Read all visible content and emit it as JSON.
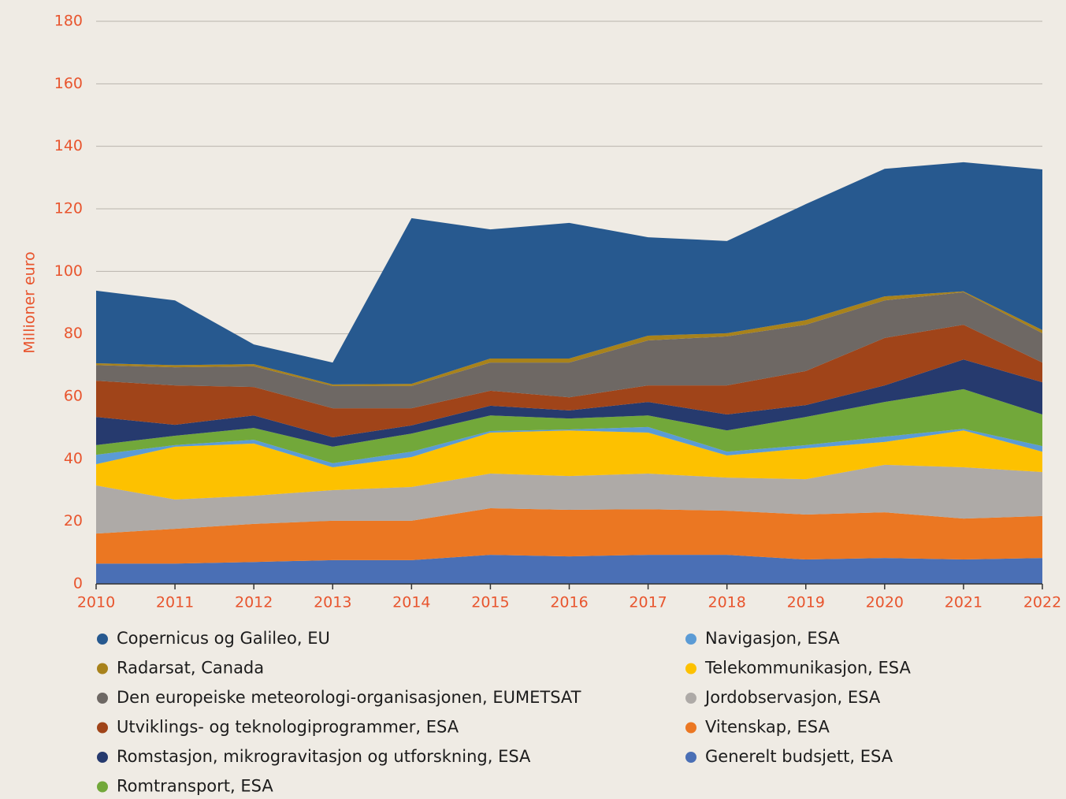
{
  "chart_data": {
    "type": "stacked-area",
    "y_label": "Millioner euro",
    "x": [
      2010,
      2011,
      2012,
      2013,
      2014,
      2015,
      2016,
      2017,
      2018,
      2019,
      2020,
      2021,
      2022
    ],
    "xlim": [
      2010,
      2022
    ],
    "xticks": [
      2010,
      2011,
      2012,
      2013,
      2014,
      2015,
      2016,
      2017,
      2018,
      2019,
      2020,
      2021,
      2022
    ],
    "ylim": [
      0,
      180
    ],
    "yticks": [
      0,
      20,
      40,
      60,
      80,
      100,
      120,
      140,
      160,
      180
    ],
    "grid": true,
    "series": [
      {
        "name": "Copernicus og Galileo, EU",
        "color": "#27598f",
        "values": [
          23.2,
          20.7,
          6.3,
          7.0,
          53.0,
          41.3,
          43.4,
          31.5,
          29.5,
          37.1,
          40.8,
          41.3,
          51.4
        ]
      },
      {
        "name": "Radarsat, Canada",
        "color": "#a8821b",
        "values": [
          0.6,
          0.7,
          0.7,
          0.5,
          0.7,
          1.3,
          1.3,
          1.5,
          1.0,
          1.5,
          1.3,
          0.3,
          1.0
        ]
      },
      {
        "name": "Den europeiske meteorologi-organisasjonen, EUMETSAT",
        "color": "#6e6864",
        "values": [
          5.0,
          5.8,
          6.6,
          7.1,
          7.1,
          9.0,
          11.1,
          14.4,
          15.7,
          14.8,
          12.0,
          10.4,
          9.4
        ]
      },
      {
        "name": "Utviklings- og teknologiprogrammer, ESA",
        "color": "#a04419",
        "values": [
          11.6,
          12.6,
          9.1,
          9.3,
          5.5,
          4.8,
          4.2,
          5.3,
          9.3,
          10.9,
          15.2,
          11.1,
          6.3
        ]
      },
      {
        "name": "Romstasjon, mikrogravitasjon og utforskning, ESA",
        "color": "#263a6e",
        "values": [
          9.0,
          3.5,
          4.0,
          3.0,
          2.6,
          3.1,
          2.6,
          4.3,
          5.1,
          3.8,
          5.3,
          9.5,
          10.3
        ]
      },
      {
        "name": "Romtransport, ESA",
        "color": "#72a83a",
        "values": [
          3.1,
          3.0,
          3.8,
          5.3,
          5.8,
          5.0,
          3.5,
          3.7,
          6.8,
          9.0,
          11.1,
          12.7,
          10.1
        ]
      },
      {
        "name": "Navigasjon, ESA",
        "color": "#5b9bd5",
        "values": [
          3.0,
          0.5,
          1.2,
          1.3,
          1.7,
          0.5,
          0.3,
          1.8,
          1.2,
          1.0,
          1.7,
          0.5,
          1.8
        ]
      },
      {
        "name": "Telekommunikasjon, ESA",
        "color": "#fdc100",
        "values": [
          6.8,
          16.9,
          16.7,
          7.3,
          9.6,
          13.1,
          14.6,
          13.1,
          7.1,
          9.9,
          7.3,
          11.8,
          6.5
        ]
      },
      {
        "name": "Jordobservasjon, ESA",
        "color": "#aeaaa7",
        "values": [
          15.4,
          9.4,
          9.0,
          9.8,
          10.8,
          11.1,
          10.8,
          11.4,
          10.6,
          11.3,
          15.2,
          16.4,
          14.1
        ]
      },
      {
        "name": "Vitenskap, ESA",
        "color": "#eb7722",
        "values": [
          9.6,
          11.1,
          12.2,
          12.6,
          12.6,
          14.9,
          14.9,
          14.6,
          14.1,
          14.4,
          14.6,
          13.1,
          13.4
        ]
      },
      {
        "name": "Generelt budsjett, ESA",
        "color": "#4a6fb5",
        "values": [
          6.5,
          6.5,
          7.0,
          7.6,
          7.6,
          9.3,
          8.8,
          9.3,
          9.3,
          7.8,
          8.3,
          7.8,
          8.3
        ]
      }
    ]
  }
}
